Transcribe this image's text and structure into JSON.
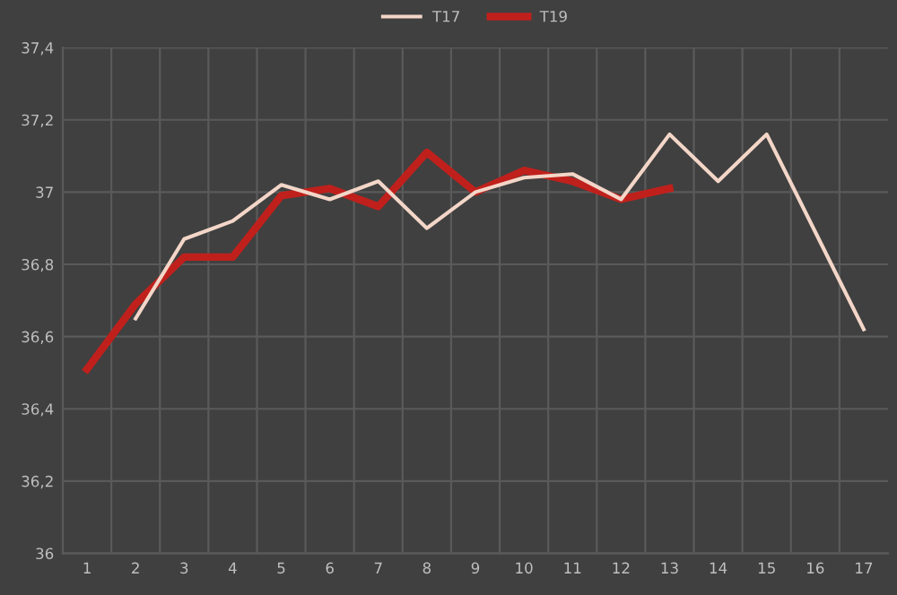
{
  "chart_data": {
    "type": "line",
    "categories": [
      "1",
      "2",
      "3",
      "4",
      "5",
      "6",
      "7",
      "8",
      "9",
      "10",
      "11",
      "12",
      "13",
      "14",
      "15",
      "16",
      "17"
    ],
    "series": [
      {
        "name": "T17",
        "color": "#f3d6c8",
        "values": [
          null,
          36.65,
          36.87,
          36.92,
          37.02,
          36.98,
          37.03,
          36.9,
          37.0,
          37.04,
          37.05,
          36.98,
          37.16,
          37.03,
          37.16,
          36.89,
          36.62
        ]
      },
      {
        "name": "T19",
        "color": "#c0201c",
        "values": [
          36.51,
          36.69,
          36.82,
          36.82,
          36.99,
          37.01,
          36.96,
          37.11,
          37.0,
          37.06,
          37.03,
          36.98,
          37.01,
          null,
          null,
          null,
          null
        ]
      }
    ],
    "ylim": [
      36,
      37.4
    ],
    "yticks": [
      36,
      {
        "value": 36.2,
        "label": "36,2"
      },
      {
        "value": 36.4,
        "label": "36,4"
      },
      {
        "value": 36.6,
        "label": "36,6"
      },
      {
        "value": 36.8,
        "label": "36,8"
      },
      37,
      {
        "value": 37.2,
        "label": "37,2"
      },
      {
        "value": 37.4,
        "label": "37,4"
      }
    ],
    "grid": true,
    "legend": "top",
    "marker": "none",
    "line_style": "solid"
  }
}
